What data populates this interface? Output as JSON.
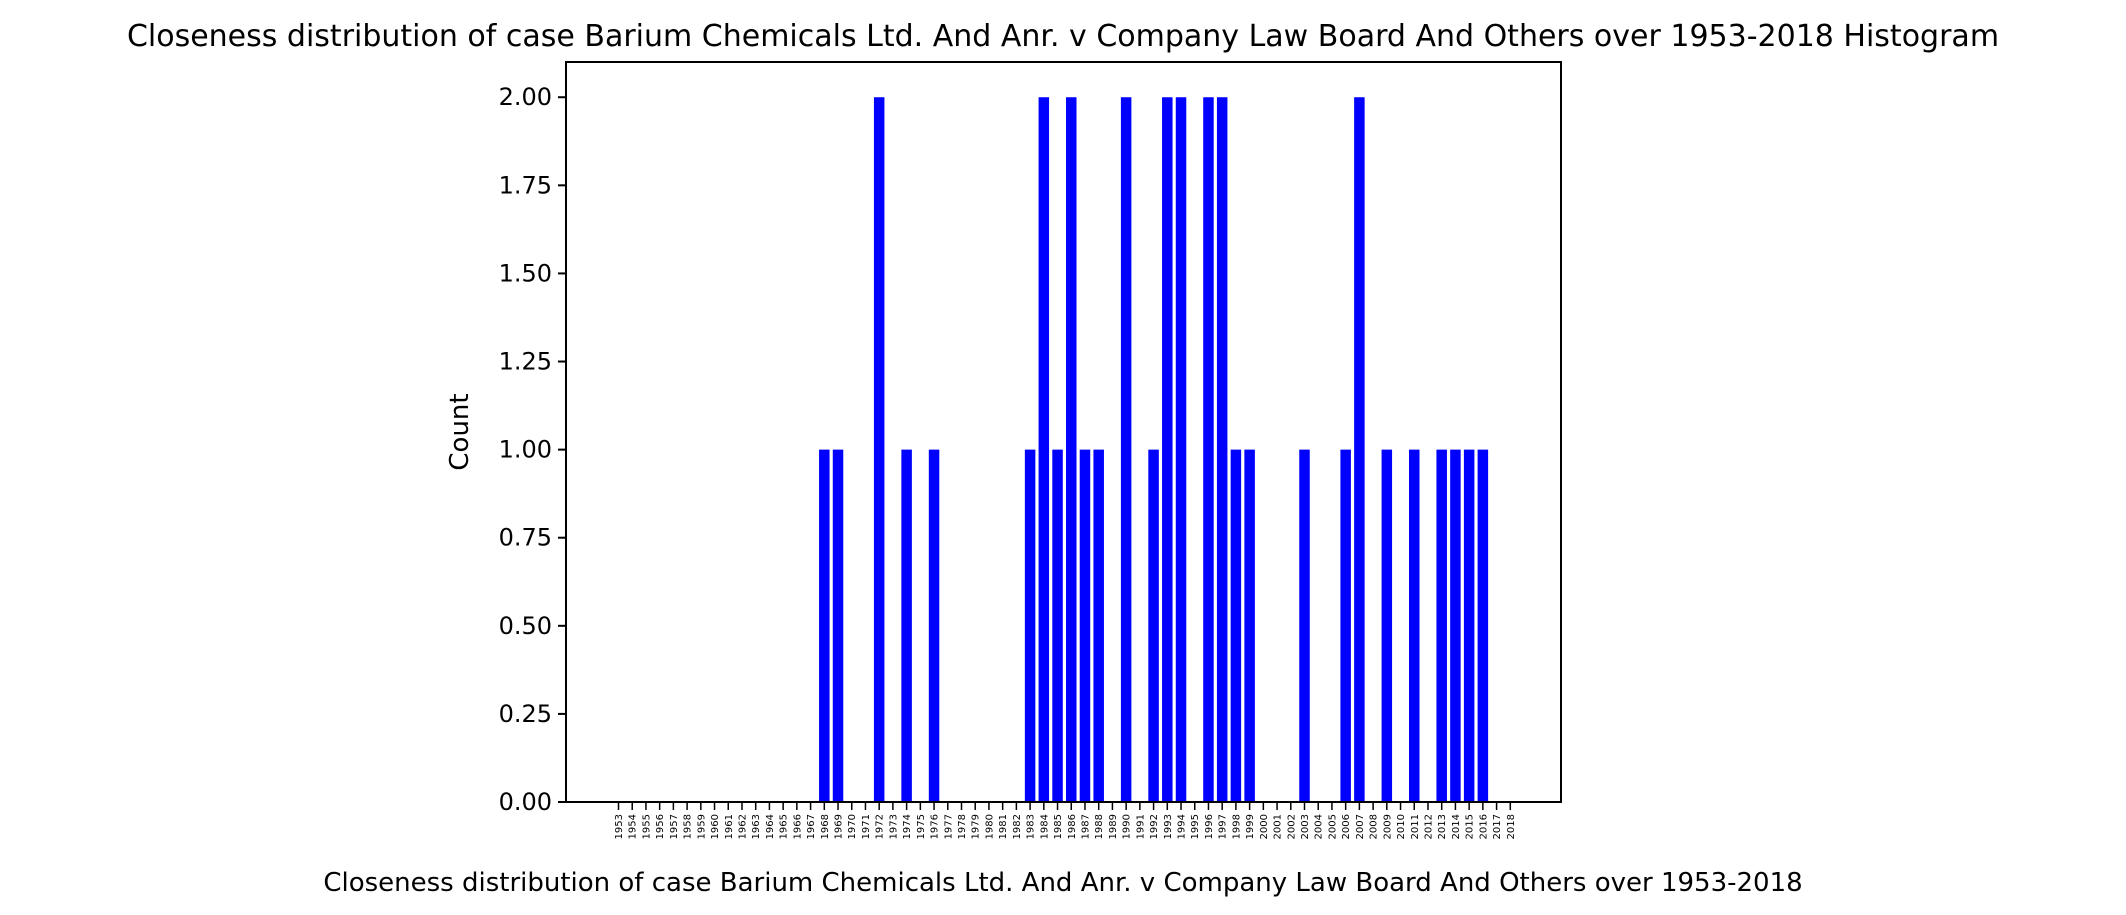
{
  "chart_data": {
    "type": "bar",
    "title": "Closeness distribution of case Barium Chemicals Ltd. And Anr. v Company Law Board And Others over 1953-2018 Histogram",
    "xlabel": "Closeness distribution of case Barium Chemicals Ltd. And Anr. v Company Law Board And Others over 1953-2018",
    "ylabel": "Count",
    "ylim": [
      0,
      2.1
    ],
    "yticks": [
      "0.00",
      "0.25",
      "0.50",
      "0.75",
      "1.00",
      "1.25",
      "1.50",
      "1.75",
      "2.00"
    ],
    "bar_color": "#0000ff",
    "grid": false,
    "categories": [
      "1953",
      "1954",
      "1955",
      "1956",
      "1957",
      "1958",
      "1959",
      "1960",
      "1961",
      "1962",
      "1963",
      "1964",
      "1965",
      "1966",
      "1967",
      "1968",
      "1969",
      "1970",
      "1971",
      "1972",
      "1973",
      "1974",
      "1975",
      "1976",
      "1977",
      "1978",
      "1979",
      "1980",
      "1981",
      "1982",
      "1983",
      "1984",
      "1985",
      "1986",
      "1987",
      "1988",
      "1989",
      "1990",
      "1991",
      "1992",
      "1993",
      "1994",
      "1995",
      "1996",
      "1997",
      "1998",
      "1999",
      "2000",
      "2001",
      "2002",
      "2003",
      "2004",
      "2005",
      "2006",
      "2007",
      "2008",
      "2009",
      "2010",
      "2011",
      "2012",
      "2013",
      "2014",
      "2015",
      "2016",
      "2017",
      "2018"
    ],
    "values": [
      0,
      0,
      0,
      0,
      0,
      0,
      0,
      0,
      0,
      0,
      0,
      0,
      0,
      0,
      0,
      1,
      1,
      0,
      0,
      2,
      0,
      1,
      0,
      1,
      0,
      0,
      0,
      0,
      0,
      0,
      1,
      2,
      1,
      2,
      1,
      1,
      0,
      2,
      0,
      1,
      2,
      2,
      0,
      2,
      2,
      1,
      1,
      0,
      0,
      0,
      1,
      0,
      0,
      1,
      2,
      0,
      1,
      0,
      1,
      0,
      1,
      1,
      1,
      1,
      0,
      0
    ]
  }
}
